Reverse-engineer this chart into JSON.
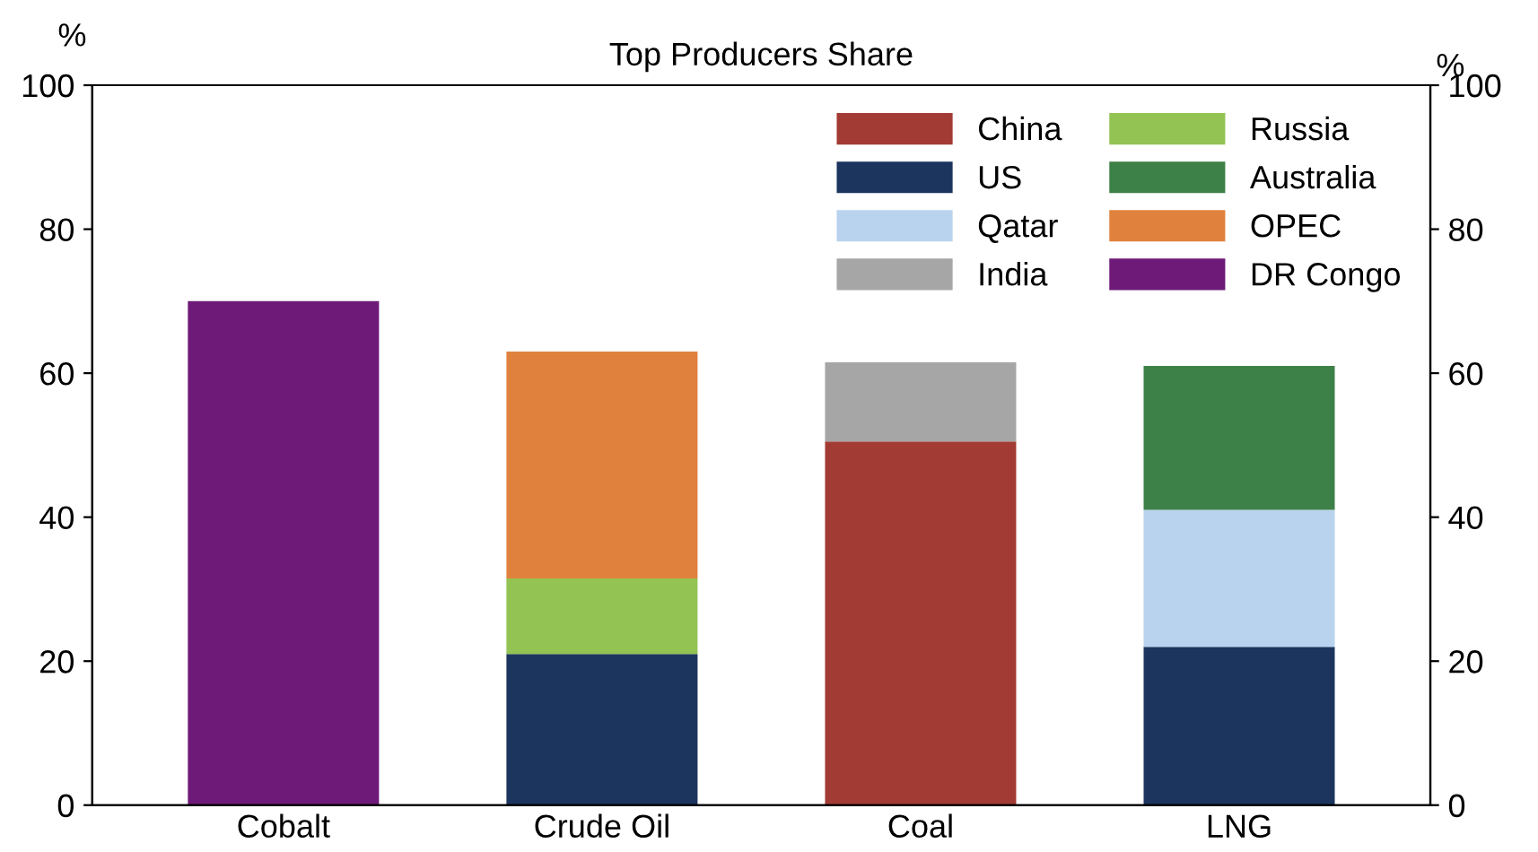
{
  "chart_data": {
    "type": "bar",
    "title": "Top Producers Share",
    "ylabel": "%",
    "y2label": "%",
    "categories": [
      "Cobalt",
      "Crude Oil",
      "Coal",
      "LNG"
    ],
    "stacked": true,
    "series": [
      {
        "name": "China",
        "color": "#a33b35",
        "values": [
          null,
          null,
          50.5,
          null
        ]
      },
      {
        "name": "US",
        "color": "#1c355e",
        "values": [
          null,
          21,
          null,
          22
        ]
      },
      {
        "name": "Qatar",
        "color": "#b9d3ee",
        "values": [
          null,
          null,
          null,
          19
        ]
      },
      {
        "name": "India",
        "color": "#a6a6a6",
        "values": [
          null,
          null,
          11,
          null
        ]
      },
      {
        "name": "Russia",
        "color": "#92c353",
        "values": [
          null,
          10.5,
          null,
          null
        ]
      },
      {
        "name": "Australia",
        "color": "#3d8148",
        "values": [
          null,
          null,
          null,
          20
        ]
      },
      {
        "name": "OPEC",
        "color": "#e0823e",
        "values": [
          null,
          31.5,
          null,
          null
        ]
      },
      {
        "name": "DR Congo",
        "color": "#6e1a78",
        "values": [
          70,
          null,
          null,
          null
        ]
      }
    ],
    "ylim": [
      0,
      100
    ],
    "yticks": [
      0,
      20,
      40,
      60,
      80,
      100
    ],
    "y2lim": [
      0,
      100
    ],
    "y2ticks": [
      0,
      20,
      40,
      60,
      80,
      100
    ],
    "grid": false,
    "legend": "top right"
  }
}
